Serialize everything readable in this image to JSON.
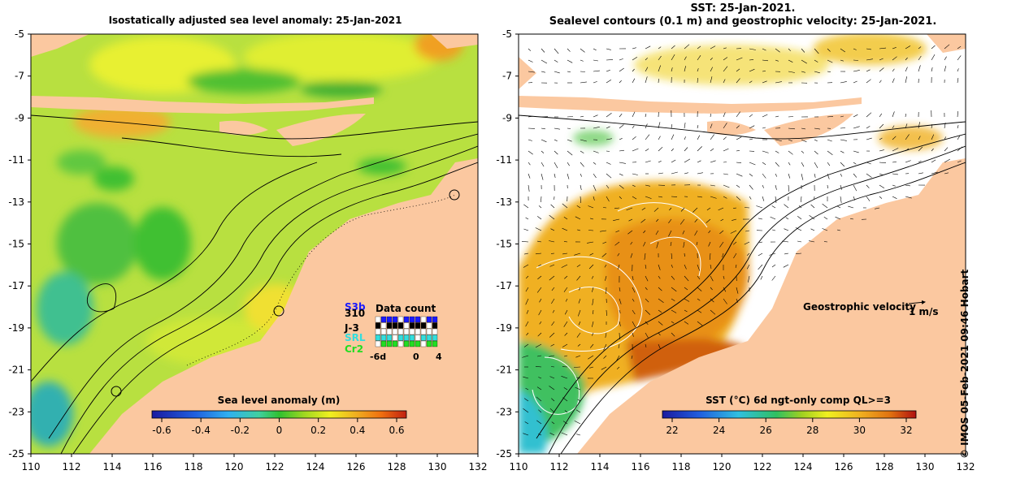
{
  "left_panel": {
    "title": "Isostatically adjusted sea level anomaly: 25-Jan-2021",
    "colorbar_label": "Sea level anomaly (m)",
    "colorbar_ticks": [
      "-0.6",
      "-0.4",
      "-0.2",
      "0",
      "0.2",
      "0.4",
      "0.6"
    ],
    "data_count": {
      "title": "Data count",
      "satellites": [
        {
          "name": "S3b",
          "color": "#1a1aff"
        },
        {
          "name": "310",
          "color": "#000000"
        },
        {
          "name": "J-3",
          "color": "#000000"
        },
        {
          "name": "SRL",
          "color": "#33dddd"
        },
        {
          "name": "Cr2",
          "color": "#22dd22"
        }
      ],
      "x_ticks": [
        "-6d",
        "0",
        "4"
      ]
    }
  },
  "right_panel": {
    "title_line1": "SST: 25-Jan-2021.",
    "title_line2": "Sealevel contours (0.1 m) and geostrophic velocity: 25-Jan-2021.",
    "velocity_label": "Geostrophic velocity",
    "velocity_scale": "1 m/s",
    "colorbar_label": "SST (°C) 6d ngt-only comp QL>=3",
    "colorbar_ticks": [
      "22",
      "24",
      "26",
      "28",
      "30",
      "32"
    ]
  },
  "axes": {
    "lat_ticks": [
      "-5",
      "-7",
      "-9",
      "-11",
      "-13",
      "-15",
      "-17",
      "-19",
      "-21",
      "-23",
      "-25"
    ],
    "lon_ticks": [
      "110",
      "112",
      "114",
      "116",
      "118",
      "120",
      "122",
      "124",
      "126",
      "128",
      "130",
      "132"
    ],
    "lon_range": [
      110,
      132
    ],
    "lat_range": [
      -25,
      -5
    ]
  },
  "colors": {
    "land": "#fbc8a0",
    "sla_palette": [
      "#1a1aa0",
      "#2060e0",
      "#30b0f0",
      "#40d0a0",
      "#30c030",
      "#80d020",
      "#f0f020",
      "#f0b020",
      "#f07010",
      "#c02010"
    ],
    "sst_palette": [
      "#1a1aa0",
      "#2060e0",
      "#30c0e0",
      "#30c080",
      "#40c030",
      "#a0d020",
      "#f0f020",
      "#f0b020",
      "#e07010",
      "#b01010"
    ]
  },
  "credit": "© IMOS 05-Feb-2021 09:46 Hobart"
}
